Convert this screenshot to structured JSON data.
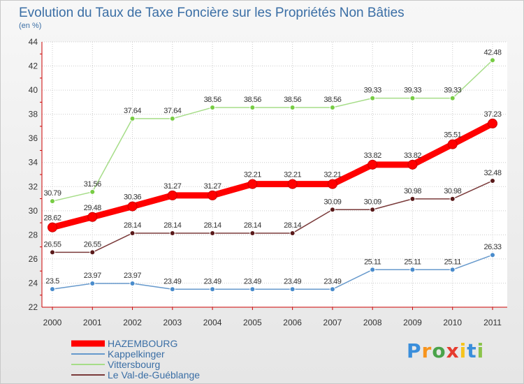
{
  "chart_data": {
    "type": "line",
    "title": "Evolution du Taux de Taxe Foncière sur les Propriétés Non Bâties",
    "subtitle": "(en %)",
    "x": [
      "2000",
      "2001",
      "2002",
      "2003",
      "2004",
      "2005",
      "2006",
      "2007",
      "2008",
      "2009",
      "2010",
      "2011"
    ],
    "ylim": [
      22,
      44
    ],
    "yticks": [
      "22",
      "24",
      "26",
      "28",
      "30",
      "32",
      "34",
      "36",
      "38",
      "40",
      "42",
      "44"
    ],
    "grid": true,
    "legend_position": "bottom-left",
    "series": [
      {
        "name": "HAZEMBOURG",
        "color": "#ff0000",
        "bold": true,
        "values": [
          28.62,
          29.48,
          30.36,
          31.27,
          31.27,
          32.21,
          32.21,
          32.21,
          33.82,
          33.82,
          35.51,
          37.23
        ],
        "labels": [
          "28.62",
          "29.48",
          "30.36",
          "31.27",
          "31.27",
          "32.21",
          "32.21",
          "32.21",
          "33.82",
          "33.82",
          "35.51",
          "37.23"
        ]
      },
      {
        "name": "Kappelkinger",
        "color": "#6699cc",
        "marker": "#4a8ccc",
        "values": [
          23.5,
          23.97,
          23.97,
          23.49,
          23.49,
          23.49,
          23.49,
          23.49,
          25.11,
          25.11,
          25.11,
          26.33
        ],
        "labels": [
          "23.5",
          "23.97",
          "23.97",
          "23.49",
          "23.49",
          "23.49",
          "23.49",
          "23.49",
          "25.11",
          "25.11",
          "25.11",
          "26.33"
        ]
      },
      {
        "name": "Vittersbourg",
        "color": "#a6dd88",
        "marker": "#77cc44",
        "values": [
          30.79,
          31.56,
          37.64,
          37.64,
          38.56,
          38.56,
          38.56,
          38.56,
          39.33,
          39.33,
          39.33,
          42.48
        ],
        "labels": [
          "30.79",
          "31.56",
          "37.64",
          "37.64",
          "38.56",
          "38.56",
          "38.56",
          "38.56",
          "39.33",
          "39.33",
          "39.33",
          "42.48"
        ]
      },
      {
        "name": "Le Val-de-Guéblange",
        "color": "#7a3a3a",
        "marker": "#5a1a1a",
        "values": [
          26.55,
          26.55,
          28.14,
          28.14,
          28.14,
          28.14,
          28.14,
          30.09,
          30.09,
          30.98,
          30.98,
          32.48
        ],
        "labels": [
          "26.55",
          "26.55",
          "28.14",
          "28.14",
          "28.14",
          "28.14",
          "28.14",
          "30.09",
          "30.09",
          "30.98",
          "30.98",
          "32.48"
        ]
      }
    ]
  },
  "logo": {
    "letters": [
      "P",
      "r",
      "o",
      "x",
      "i",
      "t",
      "i"
    ],
    "colors": [
      "#3a8edb",
      "#f7941d",
      "#4aa34a",
      "#e63b2e",
      "#f7c41d",
      "#3a8edb",
      "#8bc34a"
    ]
  }
}
